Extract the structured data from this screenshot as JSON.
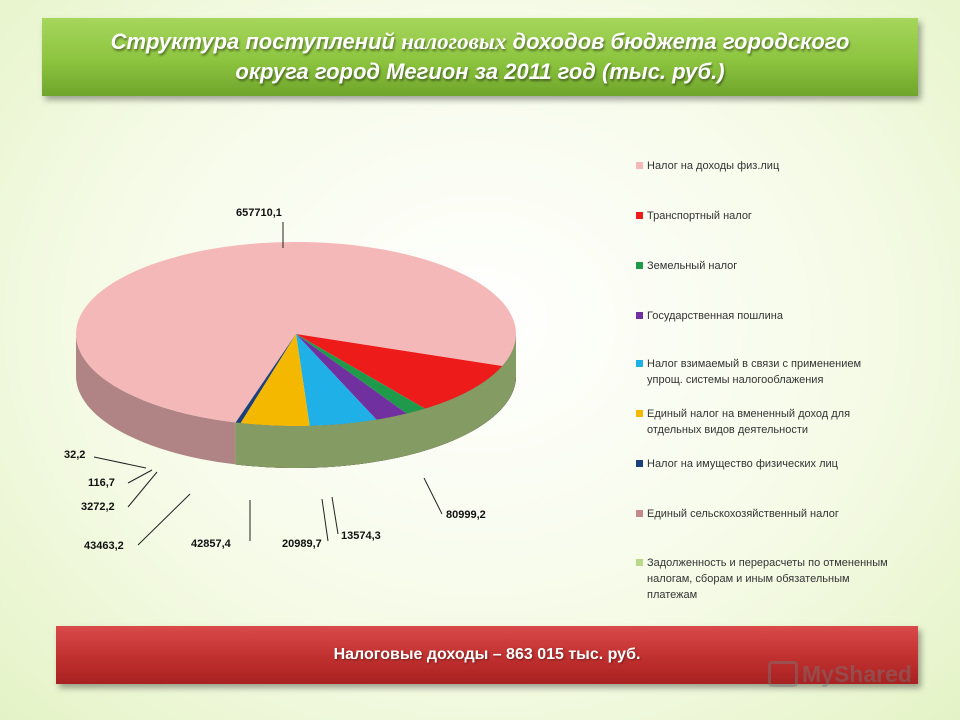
{
  "title": {
    "line1_pre": "Структура поступлений ",
    "line1_serif": "налоговых",
    "line1_post": " доходов  бюджета городского",
    "line2": "округа город Мегион за 2011 год (тыс. руб.)"
  },
  "footer": {
    "text": "Налоговые доходы – 863 015  тыс. руб."
  },
  "watermark": {
    "text": "MyShared"
  },
  "chart_data": {
    "type": "pie",
    "title": "",
    "legend_position": "right",
    "slices": [
      {
        "label": "Налог на доходы физ.лиц",
        "value": 657710.1,
        "value_label": "657710,1",
        "color": "#f4b8b8"
      },
      {
        "label": "Транспортный  налог",
        "value": 80999.2,
        "value_label": "80999,2",
        "color": "#ee1b1b"
      },
      {
        "label": "Земельный налог",
        "value": 13574.3,
        "value_label": "13574,3",
        "color": "#1f9a4a"
      },
      {
        "label": "Государственная пошлина",
        "value": 20989.7,
        "value_label": "20989,7",
        "color": "#7030a0"
      },
      {
        "label": "Налог взимаемый  в связи  с применением\nупрощ. системы налогооблажения",
        "value": 42857.4,
        "value_label": "42857,4",
        "color": "#1fb0e8"
      },
      {
        "label": "Единый  налог на вмененный   доход для\nотдельных  видов  деятельности",
        "value": 43463.2,
        "value_label": "43463,2",
        "color": "#f5b800"
      },
      {
        "label": "Налог на имущество физических  лиц",
        "value": 3272.2,
        "value_label": "3272,2",
        "color": "#1f3f7a"
      },
      {
        "label": "Единый  сельскохозяйственный  налог",
        "value": 116.7,
        "value_label": "116,7",
        "color": "#c78a8a"
      },
      {
        "label": "Задолженность  и перерасчеты  по отмененным\nналогам,  сборам и иным  обязательным\nплатежам",
        "value": 32.2,
        "value_label": "32,2",
        "color": "#b8d88a"
      }
    ]
  }
}
